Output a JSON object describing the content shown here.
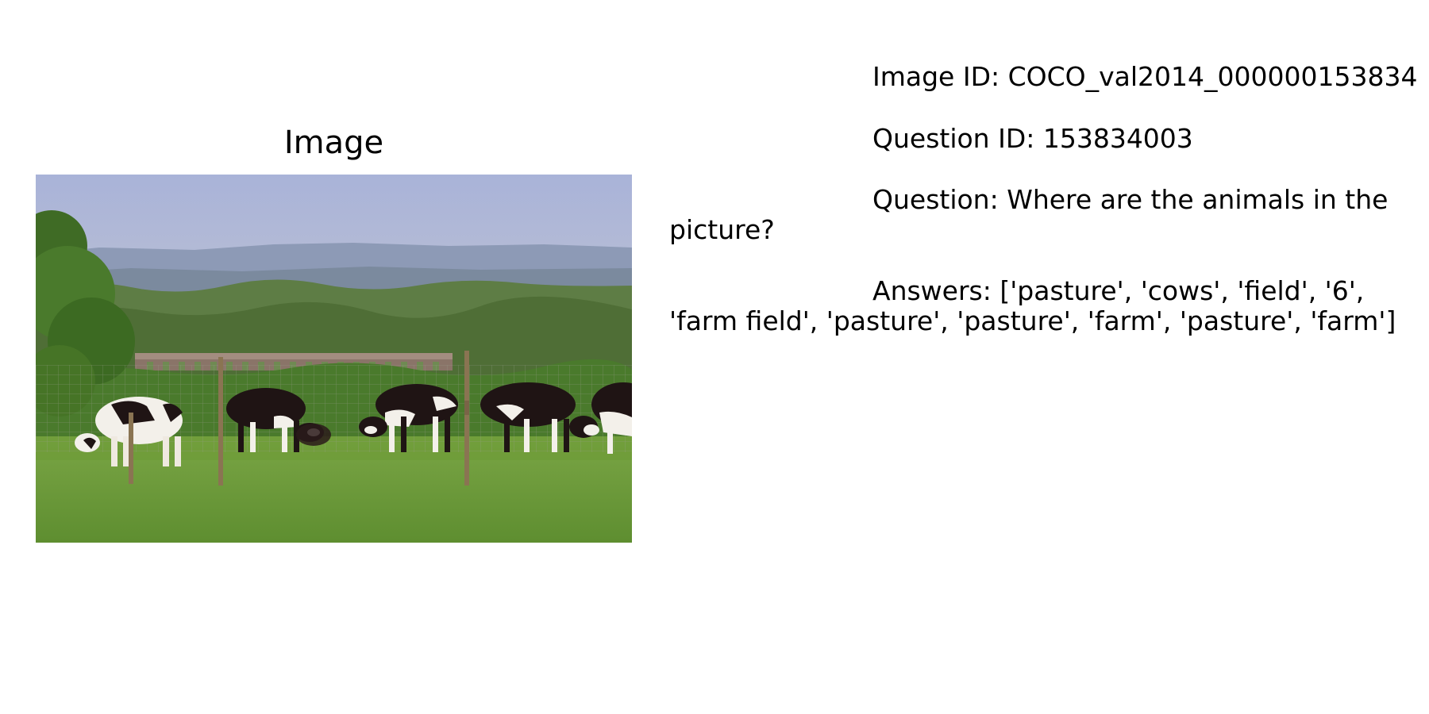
{
  "panel": {
    "title": "Image"
  },
  "info": {
    "image_id": "Image ID: COCO_val2014_000000153834",
    "question_id": "Question ID: 153834003",
    "question": "Question: Where are the animals in the picture?",
    "answers": "Answers: ['pasture', 'cows', 'field', '6', 'farm field', 'pasture', 'pasture', 'farm', 'pasture', 'farm']"
  },
  "colors": {
    "sky": "#aab4d6",
    "hills": "#8e9cb5",
    "trees": "#5b7a3f",
    "grass": "#6a9a3a",
    "cow_black": "#1f1414",
    "cow_white": "#f3f0ea"
  }
}
